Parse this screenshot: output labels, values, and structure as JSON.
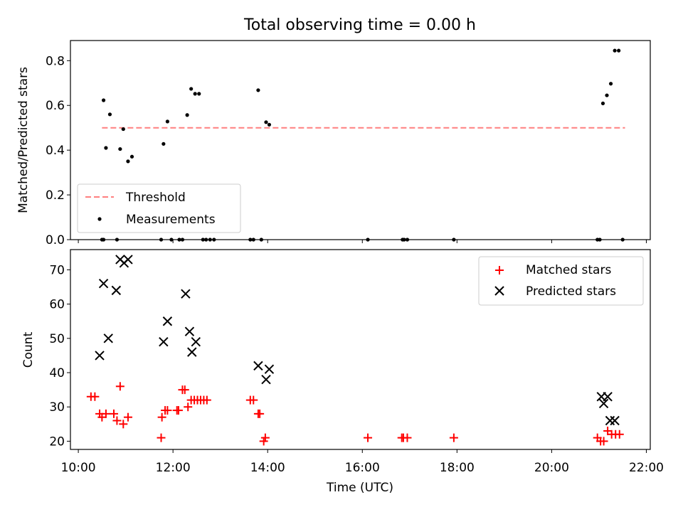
{
  "chart_data": [
    {
      "type": "scatter",
      "title": "Total observing time = 0.00 h",
      "xlabel": "",
      "ylabel": "Matched/Predicted stars",
      "xlim": [
        "09:50",
        "22:05"
      ],
      "ylim": [
        0.0,
        0.89
      ],
      "yticks": [
        "0.0",
        "0.2",
        "0.4",
        "0.6",
        "0.8"
      ],
      "threshold": {
        "name": "Threshold",
        "value": 0.5,
        "x_range": [
          "10:30",
          "21:33"
        ],
        "color": "#ff7f7f"
      },
      "series": [
        {
          "name": "Measurements",
          "color": "#000000",
          "points": [
            [
              "10:30",
              0.0
            ],
            [
              "10:32",
              0.0
            ],
            [
              "10:49",
              0.0
            ],
            [
              "10:32",
              0.623
            ],
            [
              "10:35",
              0.41
            ],
            [
              "10:40",
              0.56
            ],
            [
              "10:53",
              0.405
            ],
            [
              "10:57",
              0.494
            ],
            [
              "11:03",
              0.35
            ],
            [
              "11:08",
              0.371
            ],
            [
              "11:45",
              0.0
            ],
            [
              "11:48",
              0.428
            ],
            [
              "11:53",
              0.528
            ],
            [
              "11:58",
              0.0
            ],
            [
              "12:08",
              0.0
            ],
            [
              "12:12",
              0.0
            ],
            [
              "12:18",
              0.557
            ],
            [
              "12:23",
              0.674
            ],
            [
              "12:28",
              0.652
            ],
            [
              "12:33",
              0.652
            ],
            [
              "12:38",
              0.0
            ],
            [
              "12:42",
              0.0
            ],
            [
              "12:47",
              0.0
            ],
            [
              "12:52",
              0.0
            ],
            [
              "13:38",
              0.0
            ],
            [
              "13:42",
              0.0
            ],
            [
              "13:48",
              0.668
            ],
            [
              "13:52",
              0.0
            ],
            [
              "13:58",
              0.525
            ],
            [
              "14:02",
              0.514
            ],
            [
              "16:07",
              0.0
            ],
            [
              "16:51",
              0.0
            ],
            [
              "16:53",
              0.0
            ],
            [
              "16:57",
              0.0
            ],
            [
              "17:56",
              0.0
            ],
            [
              "20:58",
              0.0
            ],
            [
              "21:01",
              0.0
            ],
            [
              "21:05",
              0.609
            ],
            [
              "21:10",
              0.645
            ],
            [
              "21:15",
              0.697
            ],
            [
              "21:20",
              0.845
            ],
            [
              "21:25",
              0.845
            ],
            [
              "21:30",
              0.0
            ]
          ]
        }
      ],
      "legend": "lower-left"
    },
    {
      "type": "scatter",
      "title": "",
      "xlabel": "Time (UTC)",
      "ylabel": "Count",
      "xlim": [
        "09:50",
        "22:05"
      ],
      "ylim": [
        17.6,
        75.9
      ],
      "xticks": [
        "10:00",
        "12:00",
        "14:00",
        "16:00",
        "18:00",
        "20:00",
        "22:00"
      ],
      "yticks": [
        "20",
        "30",
        "40",
        "50",
        "60",
        "70"
      ],
      "series": [
        {
          "name": "Matched stars",
          "marker": "+",
          "color": "#ff0000",
          "points": [
            [
              "10:16",
              33
            ],
            [
              "10:21",
              33
            ],
            [
              "10:27",
              28
            ],
            [
              "10:30",
              27
            ],
            [
              "10:35",
              28
            ],
            [
              "10:45",
              28
            ],
            [
              "10:49",
              26
            ],
            [
              "10:53",
              36
            ],
            [
              "10:57",
              25
            ],
            [
              "11:03",
              27
            ],
            [
              "11:45",
              21
            ],
            [
              "11:46",
              27
            ],
            [
              "11:50",
              29
            ],
            [
              "11:53",
              29
            ],
            [
              "12:05",
              29
            ],
            [
              "12:07",
              29
            ],
            [
              "12:12",
              35
            ],
            [
              "12:15",
              35
            ],
            [
              "12:19",
              30
            ],
            [
              "12:23",
              32
            ],
            [
              "12:27",
              32
            ],
            [
              "12:31",
              32
            ],
            [
              "12:35",
              32
            ],
            [
              "12:39",
              32
            ],
            [
              "12:43",
              32
            ],
            [
              "13:38",
              32
            ],
            [
              "13:42",
              32
            ],
            [
              "13:48",
              28
            ],
            [
              "13:50",
              28
            ],
            [
              "13:55",
              20
            ],
            [
              "13:57",
              21
            ],
            [
              "16:07",
              21
            ],
            [
              "16:50",
              21
            ],
            [
              "16:52",
              21
            ],
            [
              "16:57",
              21
            ],
            [
              "17:56",
              21
            ],
            [
              "20:58",
              21
            ],
            [
              "21:02",
              20
            ],
            [
              "21:06",
              20
            ],
            [
              "21:11",
              23
            ],
            [
              "21:16",
              22
            ],
            [
              "21:21",
              22
            ],
            [
              "21:26",
              22
            ]
          ]
        },
        {
          "name": "Predicted stars",
          "marker": "x",
          "color": "#000000",
          "points": [
            [
              "10:27",
              45
            ],
            [
              "10:32",
              66
            ],
            [
              "10:38",
              50
            ],
            [
              "10:48",
              64
            ],
            [
              "10:53",
              73
            ],
            [
              "10:58",
              72
            ],
            [
              "11:03",
              73
            ],
            [
              "11:48",
              49
            ],
            [
              "11:53",
              55
            ],
            [
              "12:16",
              63
            ],
            [
              "12:21",
              52
            ],
            [
              "12:24",
              46
            ],
            [
              "12:29",
              49
            ],
            [
              "13:48",
              42
            ],
            [
              "13:58",
              38
            ],
            [
              "14:02",
              41
            ],
            [
              "21:03",
              33
            ],
            [
              "21:06",
              31
            ],
            [
              "21:11",
              33
            ],
            [
              "21:14",
              26
            ],
            [
              "21:20",
              26
            ]
          ]
        }
      ],
      "legend": "top-right"
    }
  ]
}
